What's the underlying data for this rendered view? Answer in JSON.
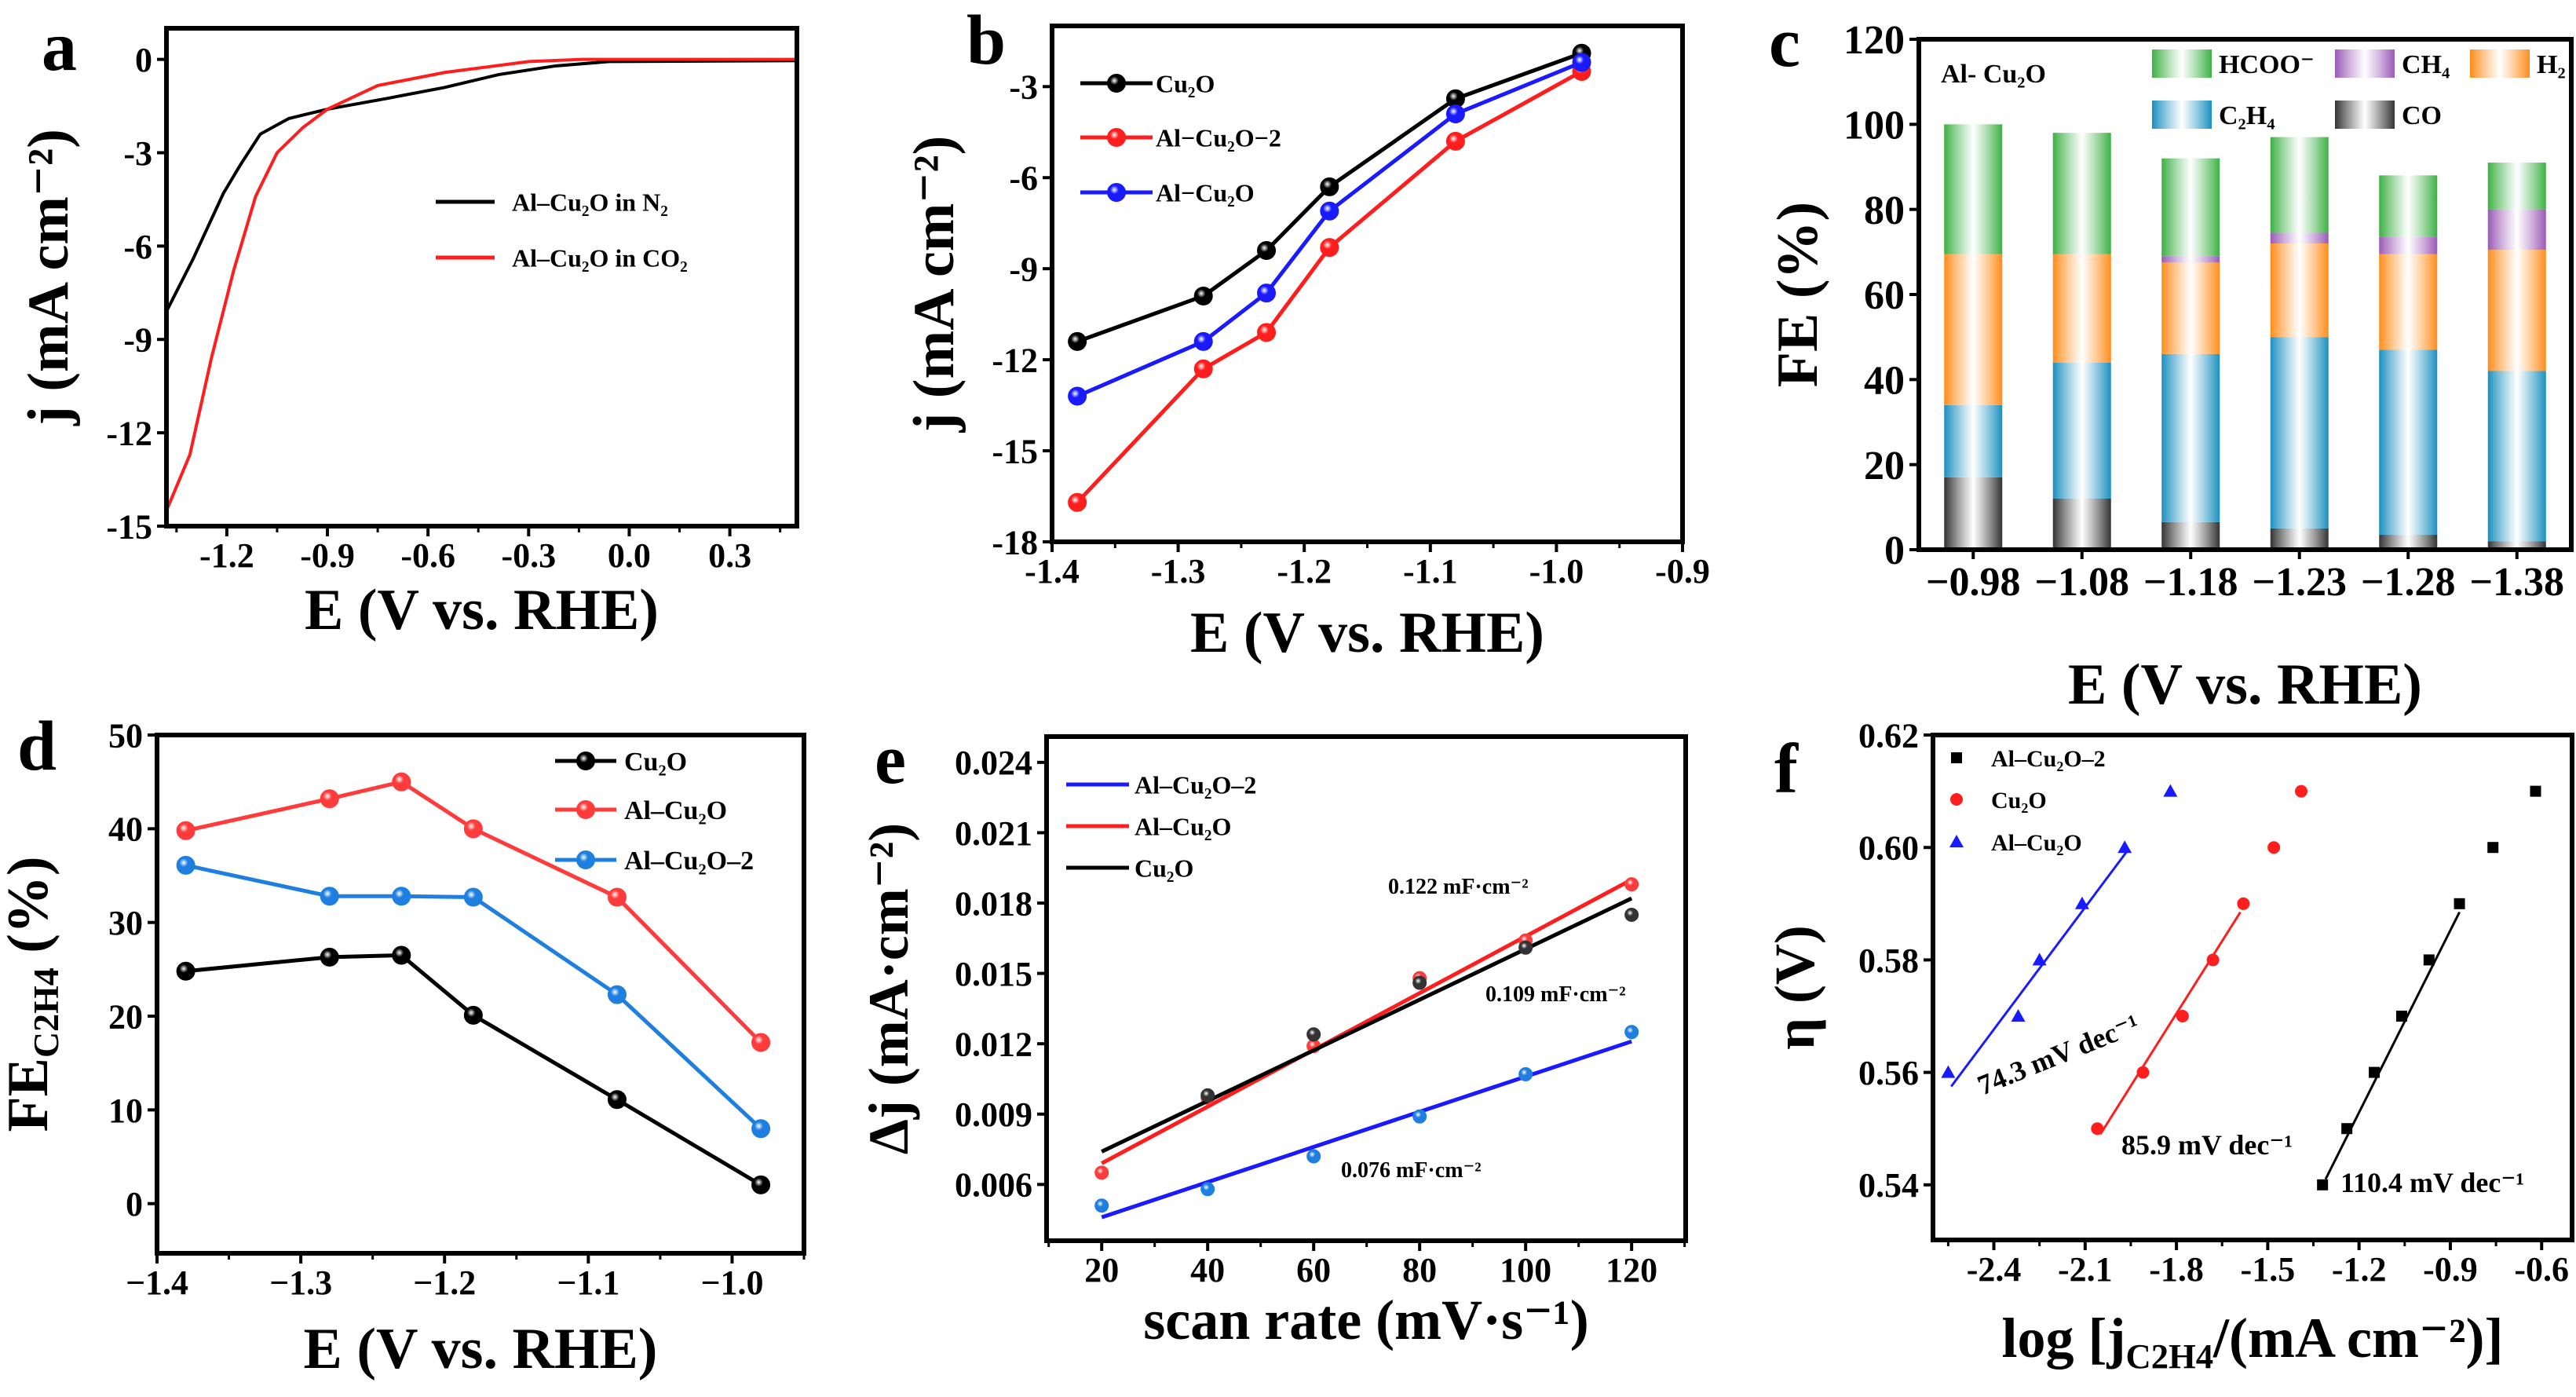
{
  "colors": {
    "black": "#000000",
    "red": "#ff1e1e",
    "blue": "#1a1aff",
    "sky": "#1f7fe0",
    "hcoo": "#3cb043",
    "ch4": "#9b59b6",
    "h2": "#ff8c1a",
    "c2h4": "#1a8fbf",
    "co": "#333333"
  },
  "chart_data": [
    {
      "panel": "a",
      "type": "line",
      "xlabel": [
        "E (V vs. RHE)"
      ],
      "ylabel": [
        "j (mA cm⁻²)"
      ],
      "xlim": [
        -1.38,
        0.5
      ],
      "ylim": [
        -15,
        1
      ],
      "xticks": [
        -1.2,
        -0.9,
        -0.6,
        -0.3,
        0.0,
        0.3
      ],
      "xticklabels": [
        "-1.2",
        "-0.9",
        "-0.6",
        "-0.3",
        "0.0",
        "0.3"
      ],
      "yticks": [
        0,
        -3,
        -6,
        -9,
        -12,
        -15
      ],
      "yticklabels": [
        "0",
        "-3",
        "-6",
        "-9",
        "-12",
        "-15"
      ],
      "legend_position": "center-right",
      "series": [
        {
          "name": "Al–Cu₂O in N₂",
          "color": "#000000",
          "x": [
            -1.38,
            -1.3,
            -1.21,
            -1.16,
            -1.1,
            -1.015,
            -0.9,
            -0.72,
            -0.55,
            -0.39,
            -0.22,
            -0.06,
            0.5
          ],
          "y": [
            -8.1,
            -6.4,
            -4.3,
            -3.4,
            -2.4,
            -1.9,
            -1.6,
            -1.25,
            -0.9,
            -0.49,
            -0.21,
            -0.07,
            -0.04
          ]
        },
        {
          "name": "Al–Cu₂O  in CO₂",
          "color": "#ff1e1e",
          "x": [
            -1.38,
            -1.31,
            -1.246,
            -1.18,
            -1.114,
            -1.05,
            -0.974,
            -0.9,
            -0.75,
            -0.55,
            -0.3,
            -0.14,
            0.5
          ],
          "y": [
            -14.5,
            -12.7,
            -9.6,
            -6.8,
            -4.4,
            -3.0,
            -2.2,
            -1.6,
            -0.84,
            -0.42,
            -0.07,
            0,
            0
          ]
        }
      ]
    },
    {
      "panel": "b",
      "type": "line",
      "xlabel": [
        "E (V vs. RHE)"
      ],
      "ylabel": [
        "j (mA cm⁻²)"
      ],
      "xlim": [
        -1.4,
        -0.9
      ],
      "ylim": [
        -18,
        -1
      ],
      "xticks": [
        -1.4,
        -1.3,
        -1.2,
        -1.1,
        -1.0,
        -0.9
      ],
      "xticklabels": [
        "-1.4",
        "-1.3",
        "-1.2",
        "-1.1",
        "-1.0",
        "-0.9"
      ],
      "yticks": [
        -3,
        -6,
        -9,
        -12,
        -15,
        -18
      ],
      "yticklabels": [
        "-3",
        "-6",
        "-9",
        "-12",
        "-15",
        "-18"
      ],
      "legend_position": "top-left",
      "x": [
        -1.38,
        -1.28,
        -1.23,
        -1.18,
        -1.08,
        -0.98
      ],
      "series": [
        {
          "name": "Cu₂O",
          "color": "#000000",
          "values": [
            -11.4,
            -9.9,
            -8.4,
            -6.3,
            -3.4,
            -1.9
          ]
        },
        {
          "name": "Al−Cu₂O−2",
          "color": "#ff1e1e",
          "values": [
            -16.7,
            -12.3,
            -11.1,
            -8.3,
            -4.8,
            -2.5
          ]
        },
        {
          "name": "Al−Cu₂O",
          "color": "#1a1aff",
          "values": [
            -13.2,
            -11.4,
            -9.8,
            -7.1,
            -3.9,
            -2.2
          ]
        }
      ]
    },
    {
      "panel": "c",
      "type": "bar",
      "stacked": true,
      "title": "Al- Cu₂O",
      "xlabel": [
        "E (V vs. RHE)"
      ],
      "ylabel": [
        "FE  (%)"
      ],
      "ylim": [
        0,
        120
      ],
      "yticks": [
        0,
        20,
        40,
        60,
        80,
        100,
        120
      ],
      "yticklabels": [
        "0",
        "20",
        "40",
        "60",
        "80",
        "100",
        "120"
      ],
      "categories": [
        "−0.98",
        "−1.08",
        "−1.18",
        "−1.23",
        "−1.28",
        "−1.38"
      ],
      "legend_position": "top-right",
      "series": [
        {
          "name": "CO",
          "color": "#333333",
          "values": [
            17,
            12,
            6.5,
            5,
            3.5,
            2
          ]
        },
        {
          "name": "C₂H₄",
          "color": "#1a8fbf",
          "values": [
            17,
            32,
            39.5,
            45,
            43.5,
            40
          ]
        },
        {
          "name": "H₂",
          "color": "#ff8c1a",
          "values": [
            35.5,
            25.5,
            21.5,
            22,
            22.5,
            28.5
          ]
        },
        {
          "name": "CH₄",
          "color": "#9b59b6",
          "values": [
            0,
            0,
            1.5,
            2.5,
            4,
            9.5
          ]
        },
        {
          "name": "HCOO⁻",
          "color": "#3cb043",
          "values": [
            30.5,
            28.5,
            23,
            22.5,
            14.5,
            11
          ]
        }
      ]
    },
    {
      "panel": "d",
      "type": "line",
      "xlabel": [
        "E (V vs. RHE)"
      ],
      "ylabel": [
        "FE",
        "C2H4",
        " (%)"
      ],
      "xlim": [
        -1.4,
        -0.95
      ],
      "ylim": [
        -5.3,
        50
      ],
      "xticks": [
        -1.4,
        -1.3,
        -1.2,
        -1.1,
        -1.0
      ],
      "xticklabels": [
        "−1.4",
        "−1.3",
        "−1.2",
        "−1.1",
        "−1.0"
      ],
      "yticks": [
        0,
        10,
        20,
        30,
        40,
        50
      ],
      "yticklabels": [
        "0",
        "10",
        "20",
        "30",
        "40",
        "50"
      ],
      "legend_position": "top-right",
      "x": [
        -1.38,
        -1.28,
        -1.23,
        -1.18,
        -1.08,
        -0.98
      ],
      "series": [
        {
          "name": "Cu₂O",
          "color": "#000000",
          "values": [
            24.8,
            26.3,
            26.5,
            20.1,
            11.1,
            2.0
          ]
        },
        {
          "name": "Al–Cu₂O",
          "color": "#ff3b3b",
          "values": [
            39.8,
            43.2,
            45.0,
            40.0,
            32.7,
            17.2
          ]
        },
        {
          "name": "Al–Cu₂O–2",
          "color": "#1f7fe0",
          "values": [
            36.1,
            32.8,
            32.8,
            32.7,
            22.3,
            8.0
          ]
        }
      ]
    },
    {
      "panel": "e",
      "type": "scatter",
      "xlabel": [
        "scan rate (mV·s⁻¹)"
      ],
      "ylabel": [
        "Δj (mA·cm⁻²)"
      ],
      "xlim": [
        9.6,
        130.2
      ],
      "ylim": [
        0.0036,
        0.0251
      ],
      "xticks": [
        20,
        40,
        60,
        80,
        100,
        120
      ],
      "xticklabels": [
        "20",
        "40",
        "60",
        "80",
        "100",
        "120"
      ],
      "yticks": [
        0.006,
        0.009,
        0.012,
        0.015,
        0.018,
        0.021,
        0.024
      ],
      "yticklabels": [
        "0.006",
        "0.009",
        "0.012",
        "0.015",
        "0.018",
        "0.021",
        "0.024"
      ],
      "legend_position": "top-left",
      "x": [
        20,
        40,
        60,
        80,
        100,
        120
      ],
      "series": [
        {
          "name": "Al–Cu₂O–2",
          "color": "#1a1aff",
          "point_color": "#1f7fe0",
          "values": [
            0.0051,
            0.0058,
            0.0072,
            0.0089,
            0.0107,
            0.0125
          ],
          "fit": [
            0.0046,
            0.0121
          ]
        },
        {
          "name": "Al–Cu₂O",
          "color": "#ff1e1e",
          "point_color": "#ff3b3b",
          "values": [
            0.0065,
            0.0097,
            0.0119,
            0.0148,
            0.0164,
            0.0188
          ],
          "fit": [
            0.0069,
            0.019
          ]
        },
        {
          "name": "Cu₂O",
          "color": "#000000",
          "point_color": "#333333",
          "values": [
            null,
            0.0098,
            0.0124,
            0.0146,
            0.0161,
            0.0175
          ],
          "fit": [
            0.0074,
            0.0182
          ]
        }
      ],
      "annotations": [
        "0.122 mF·cm⁻²",
        "0.109 mF·cm⁻²",
        "0.076 mF·cm⁻²"
      ]
    },
    {
      "panel": "f",
      "type": "scatter",
      "xlabel": [
        "log [j",
        "C2H4",
        "/(mA cm⁻²)]"
      ],
      "ylabel": [
        "η (V)"
      ],
      "xlim": [
        -2.6,
        -0.5
      ],
      "ylim": [
        0.5302,
        0.62
      ],
      "xticks": [
        -2.4,
        -2.1,
        -1.8,
        -1.5,
        -1.2,
        -0.9,
        -0.6
      ],
      "xticklabels": [
        "-2.4",
        "-2.1",
        "-1.8",
        "-1.5",
        "-1.2",
        "-0.9",
        "-0.6"
      ],
      "yticks": [
        0.54,
        0.56,
        0.58,
        0.6,
        0.62
      ],
      "yticklabels": [
        "0.54",
        "0.56",
        "0.58",
        "0.60",
        "0.62"
      ],
      "legend_position": "top-left",
      "series": [
        {
          "name": "Al–Cu₂O–2",
          "color": "#000000",
          "marker": "square",
          "x": [
            -1.32,
            -1.24,
            -1.15,
            -1.06,
            -0.97,
            -0.87,
            -0.76,
            -0.62
          ],
          "y": [
            0.54,
            0.55,
            0.56,
            0.57,
            0.58,
            0.59,
            0.6,
            0.61
          ],
          "fit": {
            "x": [
              -1.31,
              -0.87
            ],
            "y": [
              0.541,
              0.5885
            ]
          },
          "tafel_slope": "110.4 mV dec⁻¹"
        },
        {
          "name": "Cu₂O",
          "color": "#ff1e1e",
          "marker": "circle",
          "x": [
            -2.06,
            -1.91,
            -1.78,
            -1.68,
            -1.58,
            -1.48,
            -1.39
          ],
          "y": [
            0.55,
            0.56,
            0.57,
            0.58,
            0.59,
            0.6,
            0.61
          ],
          "fit": {
            "x": [
              -2.05,
              -1.59
            ],
            "y": [
              0.549,
              0.5885
            ]
          },
          "tafel_slope": "85.9 mV dec⁻¹"
        },
        {
          "name": "Al–Cu₂O",
          "color": "#1a1aff",
          "marker": "triangle",
          "x": [
            -2.55,
            -2.32,
            -2.25,
            -2.11,
            -1.97,
            -1.82
          ],
          "y": [
            0.56,
            0.57,
            0.58,
            0.59,
            0.6,
            0.61
          ],
          "fit": {
            "x": [
              -2.54,
              -1.96
            ],
            "y": [
              0.5575,
              0.5995
            ]
          },
          "tafel_slope": "74.3 mV dec⁻¹"
        }
      ]
    }
  ]
}
